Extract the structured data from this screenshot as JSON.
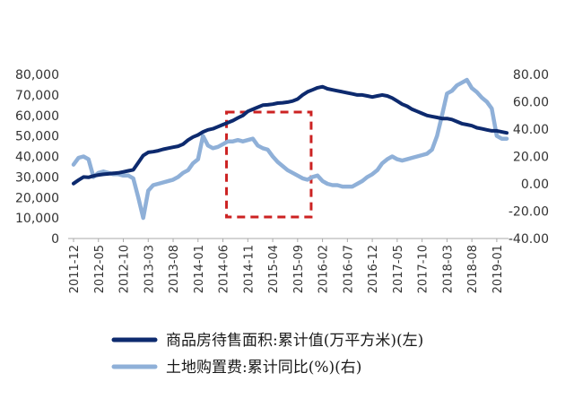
{
  "chart_data": {
    "type": "line",
    "title": "",
    "x": [
      "2011-12",
      "2012-01",
      "2012-02",
      "2012-03",
      "2012-04",
      "2012-05",
      "2012-06",
      "2012-07",
      "2012-08",
      "2012-09",
      "2012-10",
      "2012-11",
      "2012-12",
      "2013-01",
      "2013-02",
      "2013-03",
      "2013-04",
      "2013-05",
      "2013-06",
      "2013-07",
      "2013-08",
      "2013-09",
      "2013-10",
      "2013-11",
      "2013-12",
      "2014-01",
      "2014-02",
      "2014-03",
      "2014-04",
      "2014-05",
      "2014-06",
      "2014-07",
      "2014-08",
      "2014-09",
      "2014-10",
      "2014-11",
      "2014-12",
      "2015-01",
      "2015-02",
      "2015-03",
      "2015-04",
      "2015-05",
      "2015-06",
      "2015-07",
      "2015-08",
      "2015-09",
      "2015-10",
      "2015-11",
      "2015-12",
      "2016-01",
      "2016-02",
      "2016-03",
      "2016-04",
      "2016-05",
      "2016-06",
      "2016-07",
      "2016-08",
      "2016-09",
      "2016-10",
      "2016-11",
      "2016-12",
      "2017-01",
      "2017-02",
      "2017-03",
      "2017-04",
      "2017-05",
      "2017-06",
      "2017-07",
      "2017-08",
      "2017-09",
      "2017-10",
      "2017-11",
      "2017-12",
      "2018-01",
      "2018-02",
      "2018-03",
      "2018-04",
      "2018-05",
      "2018-06",
      "2018-07",
      "2018-08",
      "2018-09",
      "2018-10",
      "2018-11",
      "2018-12",
      "2019-01",
      "2019-02",
      "2019-03"
    ],
    "x_tick_labels": [
      "2011-12",
      "2012-05",
      "2012-10",
      "2013-03",
      "2013-08",
      "2014-01",
      "2014-06",
      "2014-11",
      "2015-04",
      "2015-09",
      "2016-02",
      "2016-07",
      "2016-12",
      "2017-05",
      "2017-10",
      "2018-03",
      "2018-08",
      "2019-01"
    ],
    "left_axis": {
      "ylim": [
        0,
        80000
      ],
      "ticks": [
        "0",
        "10,000",
        "20,000",
        "30,000",
        "40,000",
        "50,000",
        "60,000",
        "70,000",
        "80,000"
      ]
    },
    "right_axis": {
      "ylim": [
        -40,
        80
      ],
      "ticks": [
        "-40.00",
        "-20.00",
        "0.00",
        "20.00",
        "40.00",
        "60.00",
        "80.00"
      ]
    },
    "series": [
      {
        "name": "商品房待售面积:累计值(万平方米)(左)",
        "axis": "left",
        "color": "#0d2a6e",
        "values": [
          26800,
          28500,
          30000,
          29800,
          30500,
          31000,
          31300,
          31500,
          31800,
          32000,
          32500,
          33000,
          33500,
          37000,
          40500,
          42000,
          42300,
          42800,
          43500,
          44000,
          44500,
          45000,
          46000,
          48000,
          49500,
          50500,
          52000,
          53000,
          53500,
          54500,
          55500,
          56500,
          57500,
          58800,
          60000,
          62000,
          63000,
          64000,
          65000,
          65200,
          65500,
          66000,
          66200,
          66500,
          67000,
          68000,
          70000,
          71500,
          72500,
          73500,
          74000,
          73000,
          72500,
          72000,
          71500,
          71000,
          70500,
          70000,
          70000,
          69500,
          69000,
          69500,
          70000,
          69500,
          68500,
          67000,
          65500,
          64500,
          63000,
          62000,
          61000,
          60000,
          59500,
          59000,
          58500,
          58500,
          58000,
          57000,
          56000,
          55500,
          55000,
          54000,
          53500,
          53000,
          52500,
          52500,
          52000,
          51500
        ]
      },
      {
        "name": "土地购置费:累计同比(%)(右)",
        "axis": "right",
        "color": "#8fb0d8",
        "values": [
          14,
          19,
          20,
          18,
          5,
          8,
          9,
          8,
          7,
          7,
          6,
          6,
          4,
          -10,
          -25,
          -5,
          -1,
          0,
          1,
          2,
          3,
          5,
          8,
          10,
          15,
          18,
          35,
          28,
          26,
          27,
          29,
          31,
          31,
          32,
          31,
          32,
          33,
          28,
          26,
          25,
          20,
          16,
          13,
          10,
          8,
          6,
          4,
          3,
          5,
          6,
          2,
          0,
          -1,
          -1,
          -2,
          -2,
          -2,
          0,
          2,
          5,
          7,
          10,
          15,
          18,
          20,
          18,
          17,
          18,
          19,
          20,
          21,
          22,
          25,
          35,
          50,
          66,
          68,
          72,
          74,
          76,
          70,
          67,
          63,
          60,
          55,
          35,
          33,
          33
        ]
      }
    ],
    "annotation": {
      "type": "dashed-rectangle",
      "color": "#cc2222",
      "x_start": "2014-06",
      "x_end": "2015-11"
    },
    "legend": {
      "placement": "bottom"
    },
    "grid": false
  },
  "legend": {
    "items": [
      {
        "label": "商品房待售面积:累计值(万平方米)(左)",
        "color": "#0d2a6e"
      },
      {
        "label": "土地购置费:累计同比(%)(右)",
        "color": "#8fb0d8"
      }
    ]
  }
}
